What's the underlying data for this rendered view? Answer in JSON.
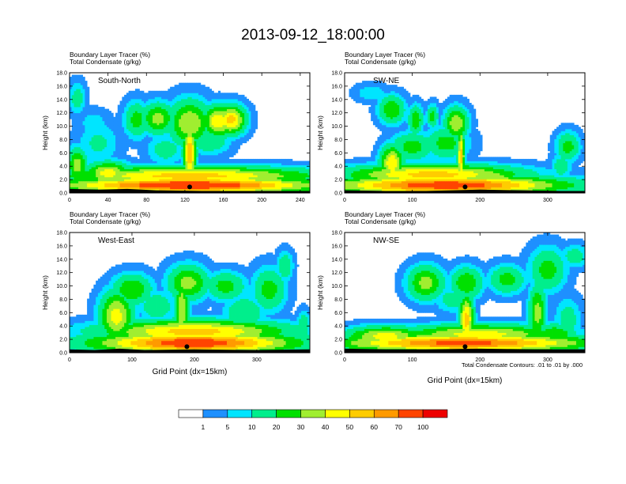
{
  "figure": {
    "title": "2013-09-12_18:00:00",
    "footnote": "Total Condensate Contours: .01 to .01 by .000",
    "background": "#ffffff"
  },
  "chart_data": [
    {
      "type": "heatmap",
      "panel_label": "South-North",
      "header_lines": [
        "Boundary Layer Tracer    (%)",
        "Total Condensate    (g/kg)"
      ],
      "ylabel": "Height (km)",
      "xlabel": "",
      "xlim": [
        0,
        250
      ],
      "ylim": [
        0,
        18
      ],
      "xticks": [
        0,
        40,
        80,
        120,
        160,
        200,
        240
      ],
      "xtick_labels": [
        "0",
        "40",
        "80",
        "120",
        "160",
        "200",
        "240"
      ],
      "yticks": [
        0,
        2,
        4,
        6,
        8,
        10,
        12,
        14,
        16,
        18
      ],
      "ytick_labels": [
        "0.0",
        "2.0",
        "4.0",
        "6.0",
        "8.0",
        "10.0",
        "12.0",
        "14.0",
        "16.0",
        "18.0"
      ],
      "marker_x": 125,
      "surface": [
        [
          0,
          0.6
        ],
        [
          30,
          0.5
        ],
        [
          60,
          0.6
        ],
        [
          90,
          0.4
        ],
        [
          140,
          0.3
        ],
        [
          200,
          0.3
        ],
        [
          250,
          0.3
        ]
      ],
      "blobs": [
        {
          "x": 125,
          "y": 1.2,
          "w": 125,
          "h": 1.1,
          "v": 85
        },
        {
          "x": 125,
          "y": 2.6,
          "w": 125,
          "h": 1.3,
          "v": 55
        },
        {
          "x": 40,
          "y": 3.0,
          "w": 22,
          "h": 1.6,
          "v": 45
        },
        {
          "x": 8,
          "y": 4.2,
          "w": 10,
          "h": 2.4,
          "v": 35
        },
        {
          "x": 30,
          "y": 7.5,
          "w": 20,
          "h": 3.0,
          "v": 12
        },
        {
          "x": 25,
          "y": 10.5,
          "w": 16,
          "h": 1.8,
          "v": 8
        },
        {
          "x": 8,
          "y": 14.2,
          "w": 8,
          "h": 2.2,
          "v": 15
        },
        {
          "x": 70,
          "y": 11.0,
          "w": 12,
          "h": 2.5,
          "v": 25
        },
        {
          "x": 92,
          "y": 11.2,
          "w": 16,
          "h": 2.2,
          "v": 35
        },
        {
          "x": 125,
          "y": 10.5,
          "w": 20,
          "h": 3.2,
          "v": 40
        },
        {
          "x": 155,
          "y": 10.8,
          "w": 15,
          "h": 2.2,
          "v": 50
        },
        {
          "x": 168,
          "y": 11.0,
          "w": 14,
          "h": 2.0,
          "v": 55
        },
        {
          "x": 125,
          "y": 6.0,
          "w": 6,
          "h": 4.0,
          "v": 60
        },
        {
          "x": 145,
          "y": 8.0,
          "w": 20,
          "h": 2.0,
          "v": 20
        },
        {
          "x": 100,
          "y": 6.5,
          "w": 18,
          "h": 2.0,
          "v": 15
        },
        {
          "x": 190,
          "y": 1.8,
          "w": 20,
          "h": 1.0,
          "v": 12
        }
      ]
    },
    {
      "type": "heatmap",
      "panel_label": "SW-NE",
      "header_lines": [
        "Boundary Layer Tracer    (%)",
        "Total Condensate    (g/kg)"
      ],
      "ylabel": "Height (km)",
      "xlabel": "",
      "xlim": [
        0,
        355
      ],
      "ylim": [
        0,
        18
      ],
      "xticks": [
        0,
        100,
        200,
        300
      ],
      "xtick_labels": [
        "0",
        "100",
        "200",
        "300"
      ],
      "yticks": [
        0,
        2,
        4,
        6,
        8,
        10,
        12,
        14,
        16,
        18
      ],
      "ytick_labels": [
        "0.0",
        "2.0",
        "4.0",
        "6.0",
        "8.0",
        "10.0",
        "12.0",
        "14.0",
        "16.0",
        "18.0"
      ],
      "marker_x": 178,
      "surface": [
        [
          0,
          0.4
        ],
        [
          60,
          0.3
        ],
        [
          120,
          0.3
        ],
        [
          200,
          0.5
        ],
        [
          260,
          0.4
        ],
        [
          320,
          0.3
        ],
        [
          355,
          0.3
        ]
      ],
      "blobs": [
        {
          "x": 150,
          "y": 1.2,
          "w": 160,
          "h": 1.3,
          "v": 80
        },
        {
          "x": 130,
          "y": 2.8,
          "w": 120,
          "h": 1.4,
          "v": 55
        },
        {
          "x": 70,
          "y": 4.5,
          "w": 16,
          "h": 2.4,
          "v": 50
        },
        {
          "x": 40,
          "y": 15.0,
          "w": 22,
          "h": 1.2,
          "v": 10
        },
        {
          "x": 70,
          "y": 12.5,
          "w": 18,
          "h": 2.0,
          "v": 30
        },
        {
          "x": 100,
          "y": 7.0,
          "w": 30,
          "h": 2.0,
          "v": 25
        },
        {
          "x": 150,
          "y": 7.5,
          "w": 30,
          "h": 2.2,
          "v": 25
        },
        {
          "x": 165,
          "y": 10.5,
          "w": 16,
          "h": 2.2,
          "v": 40
        },
        {
          "x": 172,
          "y": 5.5,
          "w": 5,
          "h": 4.0,
          "v": 55
        },
        {
          "x": 105,
          "y": 11.0,
          "w": 10,
          "h": 2.0,
          "v": 30
        },
        {
          "x": 130,
          "y": 11.5,
          "w": 8,
          "h": 1.6,
          "v": 25
        },
        {
          "x": 225,
          "y": 2.4,
          "w": 18,
          "h": 1.0,
          "v": 40
        },
        {
          "x": 330,
          "y": 7.0,
          "w": 16,
          "h": 2.0,
          "v": 25
        },
        {
          "x": 320,
          "y": 4.0,
          "w": 14,
          "h": 2.0,
          "v": 15
        }
      ]
    },
    {
      "type": "heatmap",
      "panel_label": "West-East",
      "header_lines": [
        "Boundary Layer Tracer    (%)",
        "Total Condensate    (g/kg)"
      ],
      "ylabel": "Height (km)",
      "xlabel": "Grid Point (dx=15km)",
      "xlim": [
        0,
        385
      ],
      "ylim": [
        0,
        18
      ],
      "xticks": [
        0,
        100,
        200,
        300
      ],
      "xtick_labels": [
        "0",
        "100",
        "200",
        "300"
      ],
      "yticks": [
        0,
        2,
        4,
        6,
        8,
        10,
        12,
        14,
        16,
        18
      ],
      "ytick_labels": [
        "0.0",
        "2.0",
        "4.0",
        "6.0",
        "8.0",
        "10.0",
        "12.0",
        "14.0",
        "16.0",
        "18.0"
      ],
      "marker_x": 188,
      "surface": [
        [
          0,
          0.5
        ],
        [
          40,
          0.4
        ],
        [
          80,
          0.6
        ],
        [
          120,
          0.4
        ],
        [
          200,
          0.5
        ],
        [
          300,
          0.4
        ],
        [
          385,
          0.5
        ]
      ],
      "blobs": [
        {
          "x": 200,
          "y": 1.5,
          "w": 150,
          "h": 1.5,
          "v": 80
        },
        {
          "x": 200,
          "y": 3.2,
          "w": 140,
          "h": 1.6,
          "v": 55
        },
        {
          "x": 20,
          "y": 0.9,
          "w": 25,
          "h": 0.6,
          "v": 20
        },
        {
          "x": 75,
          "y": 5.5,
          "w": 25,
          "h": 3.5,
          "v": 45
        },
        {
          "x": 100,
          "y": 9.5,
          "w": 30,
          "h": 2.2,
          "v": 30
        },
        {
          "x": 190,
          "y": 10.5,
          "w": 30,
          "h": 2.5,
          "v": 35
        },
        {
          "x": 250,
          "y": 10.0,
          "w": 30,
          "h": 2.0,
          "v": 25
        },
        {
          "x": 320,
          "y": 9.5,
          "w": 25,
          "h": 3.0,
          "v": 25
        },
        {
          "x": 345,
          "y": 13.0,
          "w": 12,
          "h": 2.0,
          "v": 20
        },
        {
          "x": 180,
          "y": 6.5,
          "w": 10,
          "h": 4.5,
          "v": 40
        },
        {
          "x": 140,
          "y": 7.0,
          "w": 25,
          "h": 2.0,
          "v": 20
        },
        {
          "x": 280,
          "y": 6.0,
          "w": 30,
          "h": 2.5,
          "v": 20
        },
        {
          "x": 375,
          "y": 4.0,
          "w": 10,
          "h": 2.0,
          "v": 20
        }
      ]
    },
    {
      "type": "heatmap",
      "panel_label": "NW-SE",
      "header_lines": [
        "Boundary Layer Tracer    (%)",
        "Total Condensate    (g/kg)"
      ],
      "ylabel": "Height (km)",
      "xlabel": "Grid Point (dx=15km)",
      "xlim": [
        0,
        355
      ],
      "ylim": [
        0,
        18
      ],
      "xticks": [
        0,
        100,
        200,
        300
      ],
      "xtick_labels": [
        "0",
        "100",
        "200",
        "300"
      ],
      "yticks": [
        0,
        2,
        4,
        6,
        8,
        10,
        12,
        14,
        16,
        18
      ],
      "ytick_labels": [
        "0.0",
        "2.0",
        "4.0",
        "6.0",
        "8.0",
        "10.0",
        "12.0",
        "14.0",
        "16.0",
        "18.0"
      ],
      "marker_x": 178,
      "surface": [
        [
          0,
          0.6
        ],
        [
          60,
          0.5
        ],
        [
          120,
          0.5
        ],
        [
          200,
          0.6
        ],
        [
          280,
          0.5
        ],
        [
          355,
          0.5
        ]
      ],
      "blobs": [
        {
          "x": 175,
          "y": 1.5,
          "w": 175,
          "h": 1.2,
          "v": 75
        },
        {
          "x": 60,
          "y": 2.5,
          "w": 55,
          "h": 1.4,
          "v": 45
        },
        {
          "x": 200,
          "y": 2.8,
          "w": 110,
          "h": 1.4,
          "v": 45
        },
        {
          "x": 180,
          "y": 5.0,
          "w": 10,
          "h": 3.5,
          "v": 55
        },
        {
          "x": 120,
          "y": 10.5,
          "w": 25,
          "h": 2.4,
          "v": 35
        },
        {
          "x": 180,
          "y": 10.5,
          "w": 22,
          "h": 2.2,
          "v": 30
        },
        {
          "x": 240,
          "y": 11.0,
          "w": 25,
          "h": 2.0,
          "v": 25
        },
        {
          "x": 300,
          "y": 12.5,
          "w": 25,
          "h": 3.0,
          "v": 25
        },
        {
          "x": 340,
          "y": 14.5,
          "w": 20,
          "h": 1.6,
          "v": 15
        },
        {
          "x": 285,
          "y": 6.0,
          "w": 12,
          "h": 4.0,
          "v": 35
        },
        {
          "x": 310,
          "y": 2.8,
          "w": 30,
          "h": 1.5,
          "v": 30
        },
        {
          "x": 160,
          "y": 8.0,
          "w": 25,
          "h": 1.8,
          "v": 15
        },
        {
          "x": 330,
          "y": 5.0,
          "w": 18,
          "h": 3.0,
          "v": 15
        }
      ]
    }
  ],
  "colorbar": {
    "labels": [
      "1",
      "5",
      "10",
      "20",
      "30",
      "40",
      "50",
      "60",
      "70",
      "100"
    ],
    "bounds": [
      0,
      1,
      5,
      10,
      20,
      30,
      40,
      50,
      60,
      70,
      100
    ],
    "colors": [
      "#ffffff",
      "#1e90ff",
      "#00e5ff",
      "#00ee8c",
      "#00e000",
      "#a0ee30",
      "#ffff00",
      "#ffcc00",
      "#ff9a00",
      "#ff4400",
      "#ee0000"
    ]
  }
}
